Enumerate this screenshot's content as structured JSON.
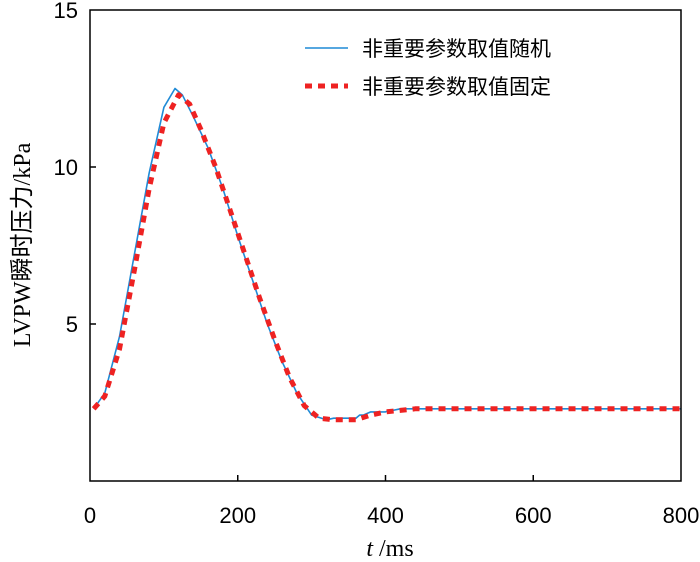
{
  "chart_data": {
    "type": "line",
    "title": "",
    "xlabel_italic": "t",
    "xlabel_rest": " /ms",
    "ylabel": "LVPW瞬时压力/kPa",
    "xlim": [
      0,
      800
    ],
    "ylim": [
      0,
      15
    ],
    "xticks": [
      0,
      200,
      400,
      600,
      800
    ],
    "yticks": [
      5,
      10,
      15
    ],
    "grid": false,
    "legend_position": "top-right",
    "series": [
      {
        "name": "非重要参数取值随机",
        "color": "#1f8ad6",
        "style": "solid",
        "x": [
          5,
          20,
          40,
          60,
          80,
          100,
          115,
          125,
          140,
          160,
          180,
          200,
          220,
          240,
          260,
          280,
          300,
          320,
          330,
          340,
          350,
          360,
          365,
          370,
          380,
          390,
          400,
          405,
          410,
          420,
          430,
          440,
          460,
          500,
          600,
          700,
          800
        ],
        "y": [
          2.3,
          2.8,
          4.6,
          7.2,
          9.8,
          11.9,
          12.5,
          12.3,
          11.6,
          10.6,
          9.3,
          7.8,
          6.4,
          5.0,
          3.8,
          2.8,
          2.1,
          1.95,
          2.0,
          2.0,
          2.0,
          2.0,
          2.1,
          2.1,
          2.2,
          2.2,
          2.2,
          2.25,
          2.25,
          2.3,
          2.3,
          2.3,
          2.3,
          2.3,
          2.3,
          2.3,
          2.3
        ]
      },
      {
        "name": "非重要参数取值固定",
        "color": "#ee2222",
        "style": "dashed",
        "x": [
          5,
          20,
          40,
          60,
          80,
          100,
          120,
          135,
          150,
          170,
          190,
          210,
          230,
          250,
          270,
          290,
          310,
          330,
          345,
          360,
          380,
          400,
          420,
          440,
          460,
          500,
          600,
          700,
          800
        ],
        "y": [
          2.3,
          2.7,
          4.2,
          6.7,
          9.3,
          11.4,
          12.3,
          12.0,
          11.2,
          10.0,
          8.6,
          7.2,
          5.8,
          4.5,
          3.3,
          2.4,
          2.0,
          1.95,
          1.95,
          1.95,
          2.1,
          2.2,
          2.25,
          2.3,
          2.3,
          2.3,
          2.3,
          2.3,
          2.3
        ]
      }
    ]
  }
}
